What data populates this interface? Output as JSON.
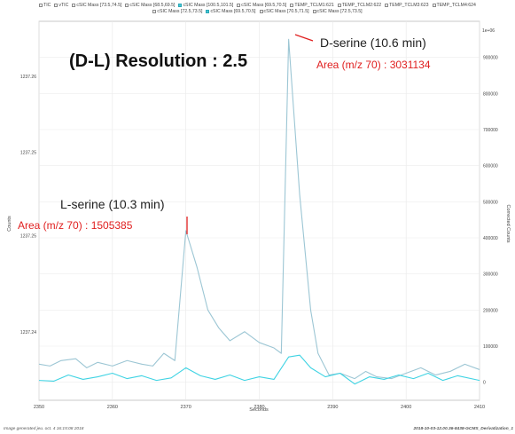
{
  "legend": {
    "row1": [
      {
        "label": "TIC",
        "checked": false
      },
      {
        "label": "vTIC",
        "checked": false
      },
      {
        "label": "cSIC Mass [73.5,74.5]",
        "checked": false
      },
      {
        "label": "cSIC Mass [68.5,69.5]",
        "checked": false
      },
      {
        "label": "cSIC Mass [100.5,101.5]",
        "checked": true
      },
      {
        "label": "cSIC Mass [69.5,70.5]",
        "checked": false
      },
      {
        "label": "TEMP_TCLM1:621",
        "checked": false
      },
      {
        "label": "TEMP_TCLM2:622",
        "checked": false
      },
      {
        "label": "TEMP_TCLM3:623",
        "checked": false
      },
      {
        "label": "TEMP_TCLM4:624",
        "checked": false
      }
    ],
    "row2": [
      {
        "label": "cSIC Mass [72.5,73.5]",
        "checked": false
      },
      {
        "label": "cSIC Mass [69.5,70.5]",
        "checked": true
      },
      {
        "label": "cSIC Mass [70.5,71.5]",
        "checked": false
      },
      {
        "label": "cSIC Mass [72.5,73.5]",
        "checked": false
      }
    ]
  },
  "footer": {
    "left": "Image generated jeu. oct. 4 16:15:08 2018",
    "right": "2018-10-03-12.00.36-8438-GCMS_Derivatization_1"
  },
  "chart_data": {
    "type": "line",
    "title": "(D-L) Resolution : 2.5",
    "xlabel": "Seconds",
    "ylabel_left": "Counts",
    "ylabel_right": "Corrected Counts",
    "xlim": [
      2350,
      2410
    ],
    "x_ticks": [
      "2350",
      "2360",
      "2370",
      "2380",
      "2390",
      "2400",
      "2410"
    ],
    "y_left_ticks": [
      "1237.24",
      "1237.25",
      "1237.25",
      "1237.26"
    ],
    "right_axis": {
      "ylim": [
        -50000,
        1000000
      ],
      "multiplier": "1e+06",
      "ticks": [
        {
          "value": 900000,
          "label": "900000"
        },
        {
          "value": 800000,
          "label": "800000"
        },
        {
          "value": 700000,
          "label": "700000"
        },
        {
          "value": 600000,
          "label": "600000"
        },
        {
          "value": 500000,
          "label": "500000"
        },
        {
          "value": 400000,
          "label": "400000"
        },
        {
          "value": 300000,
          "label": "300000"
        },
        {
          "value": 200000,
          "label": "200000"
        },
        {
          "value": 100000,
          "label": "100000"
        },
        {
          "value": 0,
          "label": "0"
        }
      ]
    },
    "series": [
      {
        "color": "#9cc6d4",
        "stroke_width": 1.1,
        "x": [
          2350,
          2351.5,
          2353,
          2355,
          2356.5,
          2358,
          2360,
          2362,
          2364,
          2365.5,
          2367,
          2368.5,
          2370,
          2371.5,
          2373,
          2374.5,
          2376,
          2378,
          2380,
          2382,
          2383,
          2384,
          2385.5,
          2387,
          2388,
          2389.5,
          2391,
          2393,
          2394.5,
          2396,
          2398,
          2400,
          2402,
          2404,
          2406,
          2408,
          2410
        ],
        "values": [
          50000,
          45000,
          60000,
          65000,
          40000,
          55000,
          45000,
          60000,
          50000,
          45000,
          80000,
          60000,
          420000,
          320000,
          200000,
          150000,
          115000,
          140000,
          110000,
          95000,
          80000,
          950000,
          520000,
          200000,
          80000,
          20000,
          25000,
          10000,
          30000,
          15000,
          10000,
          25000,
          40000,
          20000,
          30000,
          50000,
          35000
        ]
      },
      {
        "color": "#3fd3e3",
        "stroke_width": 1.1,
        "x": [
          2350,
          2352,
          2354,
          2356,
          2358,
          2360,
          2362,
          2364,
          2366,
          2368,
          2370,
          2372,
          2374,
          2376,
          2378,
          2380,
          2382,
          2384,
          2385.5,
          2387,
          2389,
          2391,
          2393,
          2395,
          2397,
          2399,
          2401,
          2403,
          2405,
          2407,
          2410
        ],
        "values": [
          5000,
          3000,
          20000,
          8000,
          15000,
          25000,
          10000,
          18000,
          5000,
          12000,
          40000,
          18000,
          8000,
          20000,
          5000,
          15000,
          8000,
          70000,
          75000,
          40000,
          15000,
          25000,
          -5000,
          15000,
          8000,
          20000,
          10000,
          25000,
          5000,
          18000,
          5000
        ]
      }
    ],
    "annotations": {
      "d_serine_label": "D-serine (10.6 min)",
      "d_serine_area": "Area (m/z 70) : 3031134",
      "l_serine_label": "L-serine (10.3 min)",
      "l_serine_area": "Area (m/z 70) : 1505385"
    },
    "grid": true,
    "legend_position": "top"
  }
}
